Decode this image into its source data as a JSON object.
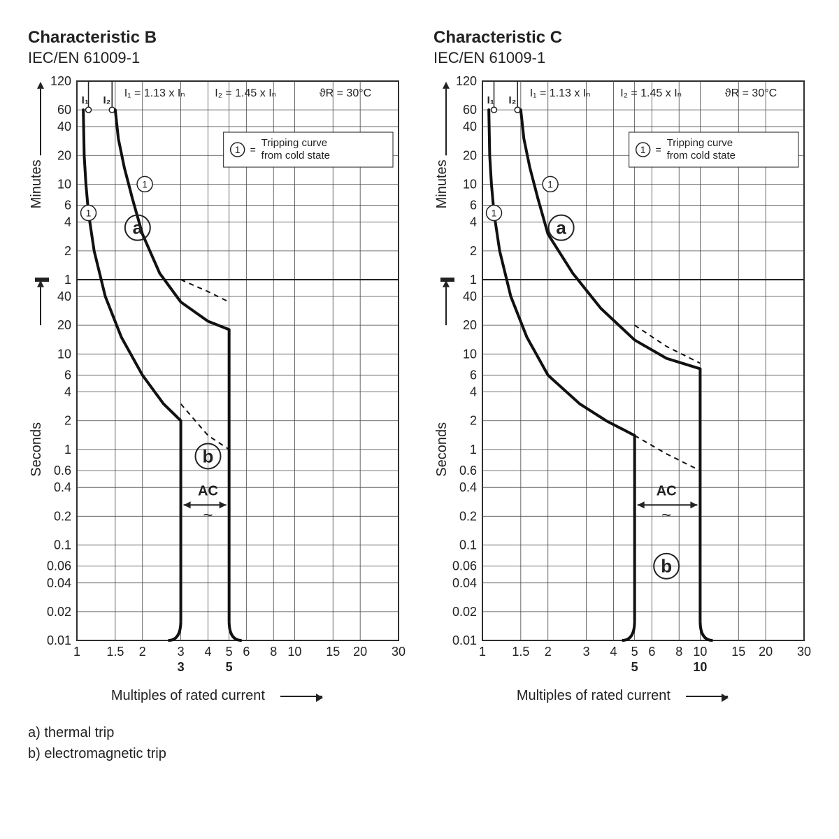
{
  "font": {
    "title_pt": 24,
    "subtitle_pt": 22,
    "axis_pt": 20,
    "tick_pt": 18,
    "annot_pt": 18
  },
  "colors": {
    "fg": "#222222",
    "bg": "#ffffff",
    "grid": "#444444",
    "curve": "#111111"
  },
  "footer": {
    "a": "a)  thermal trip",
    "b": "b)  electromagnetic trip"
  },
  "axis": {
    "x": {
      "label": "Multiples of rated current",
      "min": 1,
      "max": 30,
      "ticks": [
        1,
        1.5,
        2,
        3,
        4,
        5,
        6,
        8,
        10,
        15,
        20,
        30
      ],
      "labels": [
        "1",
        "1.5",
        "2",
        "3",
        "4",
        "5",
        "6",
        "8",
        "10",
        "15",
        "20",
        "30"
      ]
    },
    "y": {
      "min": 0.01,
      "max": 7200,
      "minutes_ticks": [
        1,
        2,
        4,
        6,
        10,
        20,
        40,
        60,
        120
      ],
      "minutes_labels": [
        "1",
        "2",
        "4",
        "6",
        "10",
        "20",
        "40",
        "60",
        "120"
      ],
      "seconds_ticks": [
        0.01,
        0.02,
        0.04,
        0.06,
        0.1,
        0.2,
        0.4,
        0.6,
        1,
        2,
        4,
        6,
        10,
        20,
        40
      ],
      "seconds_labels": [
        "0.01",
        "0.02",
        "0.04",
        "0.06",
        "0.1",
        "0.2",
        "0.4",
        "0.6",
        "1",
        "2",
        "4",
        "6",
        "10",
        "20",
        "40"
      ],
      "label_minutes": "Minutes",
      "label_seconds": "Seconds"
    }
  },
  "header_annot": {
    "i1": "I₁ = 1.13 x Iₙ",
    "i2": "I₂ = 1.45 x Iₙ",
    "temp": "ϑR = 30°C",
    "legend_num": "1",
    "legend_txt": "Tripping curve\nfrom cold state"
  },
  "charts": [
    {
      "title": "Characteristic B",
      "subtitle": "IEC/EN 61009-1",
      "ac_label": "AC",
      "ac_sym": "~",
      "a_label": "a",
      "b_label": "b",
      "bold_x": [
        "3",
        "5"
      ],
      "magnet": {
        "low": 3,
        "high": 5
      },
      "curve_left": [
        [
          1.07,
          3600
        ],
        [
          1.08,
          1200
        ],
        [
          1.1,
          600
        ],
        [
          1.13,
          300
        ],
        [
          1.2,
          120
        ],
        [
          1.35,
          40
        ],
        [
          1.6,
          15
        ],
        [
          2.0,
          6
        ],
        [
          2.5,
          3
        ],
        [
          3.0,
          2
        ]
      ],
      "curve_right": [
        [
          1.5,
          3600
        ],
        [
          1.55,
          1800
        ],
        [
          1.65,
          900
        ],
        [
          1.8,
          420
        ],
        [
          2.0,
          180
        ],
        [
          2.4,
          70
        ],
        [
          3.0,
          35
        ],
        [
          4.0,
          22
        ],
        [
          5.0,
          18
        ]
      ],
      "dash_left": [
        [
          3.0,
          3
        ],
        [
          4.0,
          1.4
        ],
        [
          5.0,
          1.0
        ]
      ],
      "dash_right": [
        [
          3.0,
          60
        ],
        [
          4.0,
          45
        ],
        [
          5.0,
          35
        ]
      ],
      "vert_left": {
        "x": 3,
        "from": 2,
        "to": 0.01
      },
      "vert_right": {
        "x": 5,
        "from": 18,
        "to": 0.01
      },
      "marker_lines": [
        1.13,
        1.45
      ],
      "circle1_at": [
        1.13,
        300
      ],
      "circle1b_at": [
        2.05,
        600
      ],
      "a_at": [
        1.9,
        210
      ],
      "b_at": [
        4.0,
        0.85
      ],
      "ac_at": [
        4.0,
        0.3
      ]
    },
    {
      "title": "Characteristic C",
      "subtitle": "IEC/EN 61009-1",
      "ac_label": "AC",
      "ac_sym": "~",
      "a_label": "a",
      "b_label": "b",
      "bold_x": [
        "5",
        "10"
      ],
      "magnet": {
        "low": 5,
        "high": 10
      },
      "curve_left": [
        [
          1.07,
          3600
        ],
        [
          1.08,
          1200
        ],
        [
          1.1,
          600
        ],
        [
          1.13,
          300
        ],
        [
          1.2,
          120
        ],
        [
          1.35,
          40
        ],
        [
          1.6,
          15
        ],
        [
          2.0,
          6
        ],
        [
          2.8,
          3
        ],
        [
          3.7,
          2
        ],
        [
          5.0,
          1.4
        ]
      ],
      "curve_right": [
        [
          1.5,
          3600
        ],
        [
          1.55,
          1800
        ],
        [
          1.65,
          900
        ],
        [
          1.8,
          420
        ],
        [
          2.0,
          180
        ],
        [
          2.6,
          70
        ],
        [
          3.5,
          30
        ],
        [
          5.0,
          14
        ],
        [
          7.0,
          9
        ],
        [
          10.0,
          7
        ]
      ],
      "dash_left": [
        [
          5.0,
          1.4
        ],
        [
          7.0,
          0.9
        ],
        [
          10.0,
          0.6
        ]
      ],
      "dash_right": [
        [
          5.0,
          20
        ],
        [
          7.0,
          12
        ],
        [
          10.0,
          8
        ]
      ],
      "vert_left": {
        "x": 5,
        "from": 1.4,
        "to": 0.01
      },
      "vert_right": {
        "x": 10,
        "from": 7,
        "to": 0.01
      },
      "marker_lines": [
        1.13,
        1.45
      ],
      "circle1_at": [
        1.13,
        300
      ],
      "circle1b_at": [
        2.05,
        600
      ],
      "a_at": [
        2.3,
        210
      ],
      "b_at": [
        7.0,
        0.06
      ],
      "ac_at": [
        7.0,
        0.3
      ]
    }
  ]
}
